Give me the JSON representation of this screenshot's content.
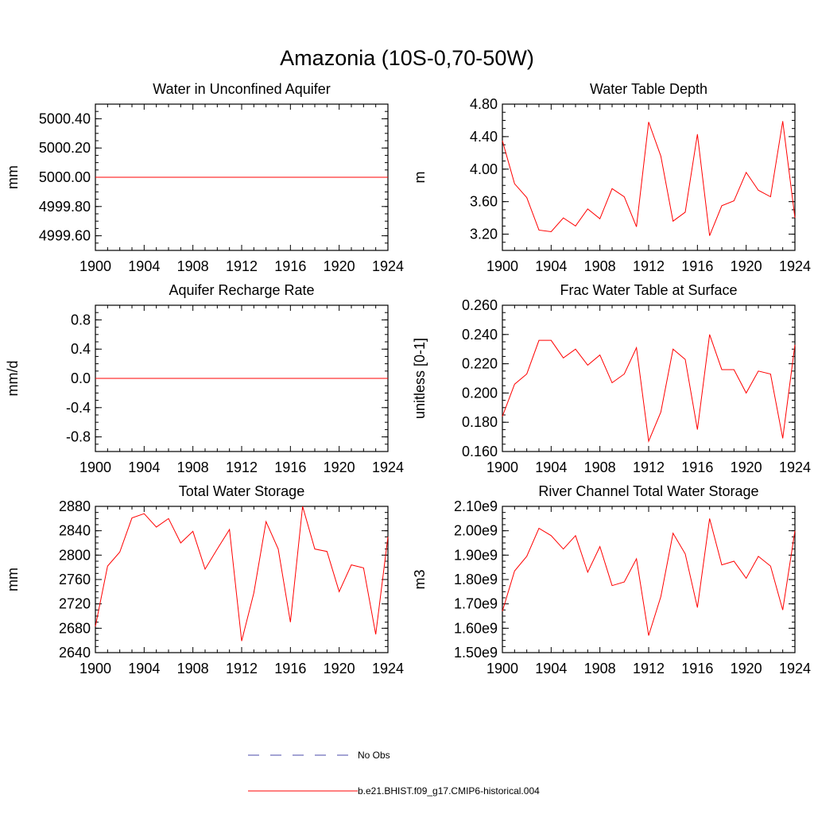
{
  "figure_title": "Amazonia (10S-0,70-50W)",
  "legend": {
    "entries": [
      {
        "label": "No Obs",
        "color": "#4a4aa8",
        "style": "dashed"
      },
      {
        "label": "b.e21.BHIST.f09_g17.CMIP6-historical.004",
        "color": "#ff0000",
        "style": "solid"
      }
    ]
  },
  "chart_data": [
    {
      "type": "line",
      "title": "Water in Unconfined Aquifer",
      "ylabel": "mm",
      "xlim": [
        1900,
        1924
      ],
      "ylim": [
        4999.5,
        5000.5
      ],
      "xticks": [
        1900,
        1904,
        1908,
        1912,
        1916,
        1920,
        1924
      ],
      "yticks": [
        4999.6,
        4999.8,
        5000.0,
        5000.2,
        5000.4
      ],
      "ytick_labels": [
        "4999.60",
        "4999.80",
        "5000.00",
        "5000.20",
        "5000.40"
      ],
      "yminor_step": 0.05,
      "x": [
        1900,
        1924
      ],
      "series": [
        {
          "color": "#ff0000",
          "values": [
            5000.0,
            5000.0
          ]
        }
      ]
    },
    {
      "type": "line",
      "title": "Water Table Depth",
      "ylabel": "m",
      "xlim": [
        1900,
        1924
      ],
      "ylim": [
        3.0,
        4.8
      ],
      "xticks": [
        1900,
        1904,
        1908,
        1912,
        1916,
        1920,
        1924
      ],
      "yticks": [
        3.2,
        3.6,
        4.0,
        4.4,
        4.8
      ],
      "ytick_labels": [
        "3.20",
        "3.60",
        "4.00",
        "4.40",
        "4.80"
      ],
      "yminor_step": 0.1,
      "x": [
        1900,
        1901,
        1902,
        1903,
        1904,
        1905,
        1906,
        1907,
        1908,
        1909,
        1910,
        1911,
        1912,
        1913,
        1914,
        1915,
        1916,
        1917,
        1918,
        1919,
        1920,
        1921,
        1922,
        1923,
        1924
      ],
      "series": [
        {
          "color": "#ff0000",
          "values": [
            4.35,
            3.82,
            3.65,
            3.25,
            3.23,
            3.4,
            3.3,
            3.51,
            3.39,
            3.76,
            3.66,
            3.29,
            4.58,
            4.16,
            3.36,
            3.47,
            4.43,
            3.18,
            3.55,
            3.61,
            3.96,
            3.74,
            3.66,
            4.59,
            3.4
          ]
        }
      ]
    },
    {
      "type": "line",
      "title": "Aquifer Recharge Rate",
      "ylabel": "mm/d",
      "xlim": [
        1900,
        1924
      ],
      "ylim": [
        -1.0,
        1.0
      ],
      "xticks": [
        1900,
        1904,
        1908,
        1912,
        1916,
        1920,
        1924
      ],
      "yticks": [
        -0.8,
        -0.4,
        0.0,
        0.4,
        0.8
      ],
      "ytick_labels": [
        "-0.8",
        "-0.4",
        "0.0",
        "0.4",
        "0.8"
      ],
      "yminor_step": 0.1,
      "x": [
        1900,
        1924
      ],
      "series": [
        {
          "color": "#ff0000",
          "values": [
            0.0,
            0.0
          ]
        }
      ]
    },
    {
      "type": "line",
      "title": "Frac Water Table at Surface",
      "ylabel": "unitless [0-1]",
      "xlim": [
        1900,
        1924
      ],
      "ylim": [
        0.16,
        0.26
      ],
      "xticks": [
        1900,
        1904,
        1908,
        1912,
        1916,
        1920,
        1924
      ],
      "yticks": [
        0.16,
        0.18,
        0.2,
        0.22,
        0.24,
        0.26
      ],
      "ytick_labels": [
        "0.160",
        "0.180",
        "0.200",
        "0.220",
        "0.240",
        "0.260"
      ],
      "yminor_step": 0.005,
      "x": [
        1900,
        1901,
        1902,
        1903,
        1904,
        1905,
        1906,
        1907,
        1908,
        1909,
        1910,
        1911,
        1912,
        1913,
        1914,
        1915,
        1916,
        1917,
        1918,
        1919,
        1920,
        1921,
        1922,
        1923,
        1924
      ],
      "series": [
        {
          "color": "#ff0000",
          "values": [
            0.184,
            0.206,
            0.213,
            0.236,
            0.236,
            0.224,
            0.23,
            0.219,
            0.226,
            0.207,
            0.213,
            0.231,
            0.167,
            0.187,
            0.23,
            0.223,
            0.175,
            0.24,
            0.216,
            0.216,
            0.2,
            0.215,
            0.213,
            0.169,
            0.233
          ]
        }
      ]
    },
    {
      "type": "line",
      "title": "Total Water Storage",
      "ylabel": "mm",
      "xlim": [
        1900,
        1924
      ],
      "ylim": [
        2640,
        2880
      ],
      "xticks": [
        1900,
        1904,
        1908,
        1912,
        1916,
        1920,
        1924
      ],
      "yticks": [
        2640,
        2680,
        2720,
        2760,
        2800,
        2840,
        2880
      ],
      "ytick_labels": [
        "2640",
        "2680",
        "2720",
        "2760",
        "2800",
        "2840",
        "2880"
      ],
      "yminor_step": 10,
      "x": [
        1900,
        1901,
        1902,
        1903,
        1904,
        1905,
        1906,
        1907,
        1908,
        1909,
        1910,
        1911,
        1912,
        1913,
        1914,
        1915,
        1916,
        1917,
        1918,
        1919,
        1920,
        1921,
        1922,
        1923,
        1924
      ],
      "series": [
        {
          "color": "#ff0000",
          "values": [
            2683,
            2782,
            2805,
            2861,
            2868,
            2846,
            2860,
            2820,
            2839,
            2777,
            2810,
            2842,
            2659,
            2738,
            2855,
            2810,
            2690,
            2880,
            2810,
            2806,
            2740,
            2784,
            2779,
            2670,
            2830
          ]
        }
      ]
    },
    {
      "type": "line",
      "title": "River Channel Total Water Storage",
      "ylabel": "m3",
      "xlim": [
        1900,
        1924
      ],
      "ylim": [
        1.5,
        2.1
      ],
      "xticks": [
        1900,
        1904,
        1908,
        1912,
        1916,
        1920,
        1924
      ],
      "yticks": [
        1.5,
        1.6,
        1.7,
        1.8,
        1.9,
        2.0,
        2.1
      ],
      "ytick_labels": [
        "1.50e9",
        "1.60e9",
        "1.70e9",
        "1.80e9",
        "1.90e9",
        "2.00e9",
        "2.10e9"
      ],
      "yminor_step": 0.025,
      "x": [
        1900,
        1901,
        1902,
        1903,
        1904,
        1905,
        1906,
        1907,
        1908,
        1909,
        1910,
        1911,
        1912,
        1913,
        1914,
        1915,
        1916,
        1917,
        1918,
        1919,
        1920,
        1921,
        1922,
        1923,
        1924
      ],
      "series": [
        {
          "color": "#ff0000",
          "values": [
            1.67,
            1.835,
            1.895,
            2.01,
            1.98,
            1.925,
            1.98,
            1.83,
            1.935,
            1.775,
            1.79,
            1.885,
            1.57,
            1.73,
            1.99,
            1.905,
            1.685,
            2.05,
            1.86,
            1.875,
            1.805,
            1.895,
            1.855,
            1.675,
            2.0
          ]
        }
      ]
    }
  ]
}
